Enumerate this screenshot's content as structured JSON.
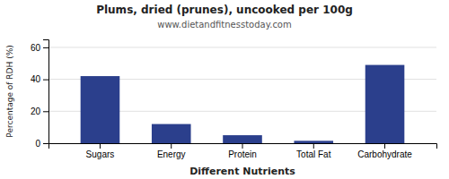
{
  "chart_data": {
    "type": "bar",
    "title": "Plums, dried (prunes), uncooked per 100g",
    "subtitle": "www.dietandfitnesstoday.com",
    "xlabel": "Different Nutrients",
    "ylabel": "Percentage of RDH (%)",
    "categories": [
      "Sugars",
      "Energy",
      "Protein",
      "Total Fat",
      "Carbohydrate"
    ],
    "values": [
      42,
      12,
      5,
      1.5,
      49
    ],
    "color": "#2b3f8c",
    "ylim": [
      0,
      65
    ],
    "yticks": [
      0,
      20,
      40,
      60
    ],
    "grid": true
  }
}
